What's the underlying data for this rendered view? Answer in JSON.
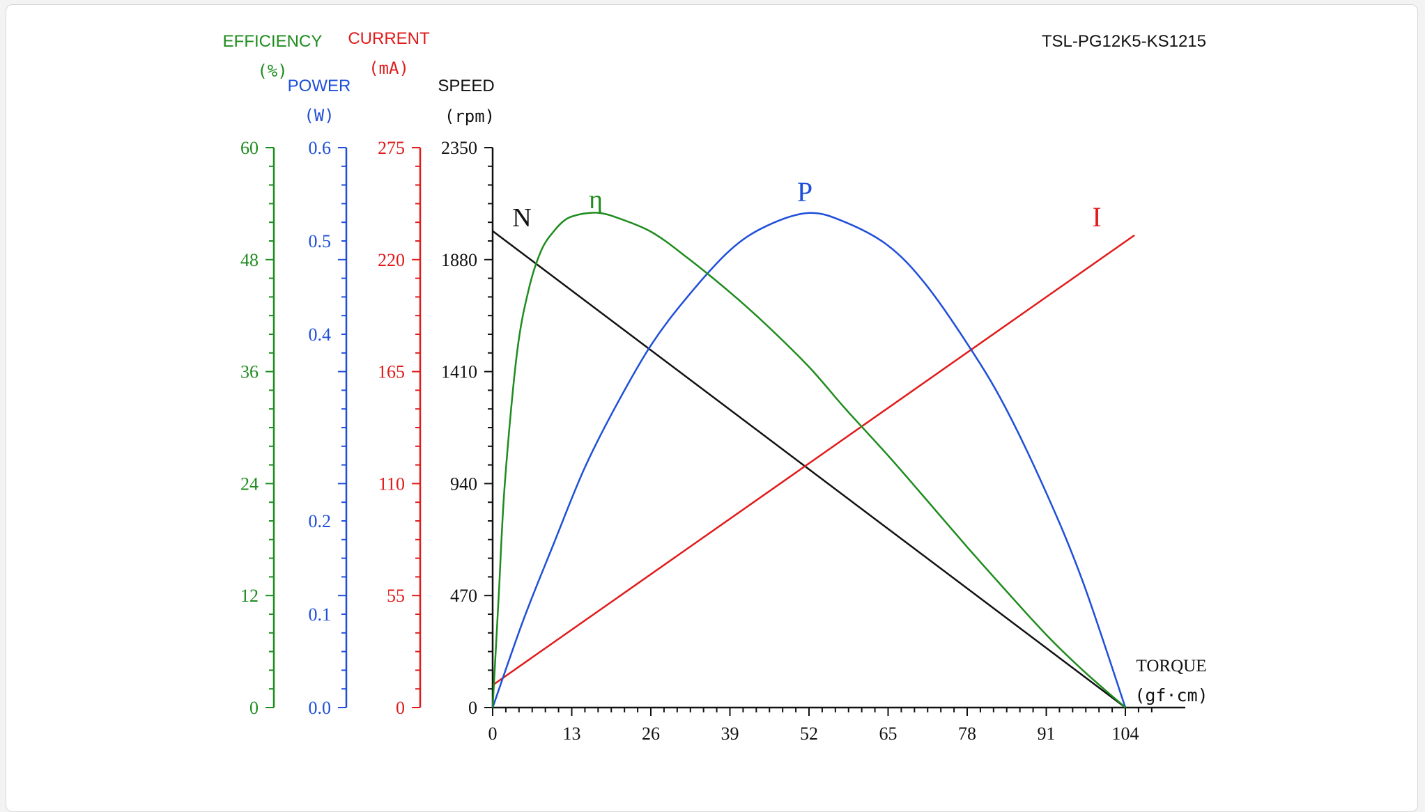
{
  "model": "TSL-PG12K5-KS1215",
  "colors": {
    "efficiency": "#1e8c1e",
    "power": "#1f4fd8",
    "current": "#e01b1b",
    "speed": "#111111"
  },
  "chart_data": {
    "type": "line",
    "title": "TSL-PG12K5-KS1215",
    "x_axis": {
      "label": "TORQUE",
      "unit": "(gf·cm)",
      "range": [
        0,
        110
      ],
      "ticks": [
        0,
        13,
        26,
        39,
        52,
        65,
        78,
        91,
        104
      ]
    },
    "y_axes": [
      {
        "key": "efficiency",
        "label": "EFFICIENCY",
        "unit": "(%)",
        "range": [
          0,
          60
        ],
        "ticks": [
          "0",
          "12",
          "24",
          "36",
          "48",
          "60"
        ]
      },
      {
        "key": "power",
        "label": "POWER",
        "unit": "(W)",
        "range": [
          0,
          0.6
        ],
        "ticks": [
          "0.0",
          "0.1",
          "0.2",
          "0.4",
          "0.5",
          "0.6"
        ],
        "tick_values": [
          0,
          0.1,
          0.2,
          0.4,
          0.5,
          0.6
        ]
      },
      {
        "key": "current",
        "label": "CURRENT",
        "unit": "(mA)",
        "range": [
          0,
          275
        ],
        "ticks": [
          "0",
          "55",
          "110",
          "165",
          "220",
          "275"
        ]
      },
      {
        "key": "speed",
        "label": "SPEED",
        "unit": "(rpm)",
        "range": [
          0,
          2350
        ],
        "ticks": [
          "0",
          "470",
          "940",
          "1410",
          "1880",
          "2350"
        ]
      }
    ],
    "series": [
      {
        "name": "N",
        "axis": "speed",
        "x": [
          0,
          104
        ],
        "y": [
          2000,
          0
        ]
      },
      {
        "name": "I",
        "axis": "current",
        "x": [
          0,
          105.5
        ],
        "y": [
          11,
          232
        ]
      },
      {
        "name": "P",
        "axis": "power",
        "x": [
          0,
          5,
          10,
          15,
          20,
          26,
          32,
          39,
          45,
          52,
          58,
          65,
          71,
          78,
          84,
          91,
          97,
          104
        ],
        "y": [
          0,
          0.093,
          0.175,
          0.255,
          0.32,
          0.388,
          0.44,
          0.49,
          0.516,
          0.53,
          0.52,
          0.495,
          0.455,
          0.39,
          0.325,
          0.23,
          0.135,
          0
        ]
      },
      {
        "name": "η",
        "axis": "efficiency",
        "x": [
          0,
          1,
          2,
          4,
          6,
          8,
          10,
          12,
          14,
          16,
          17.5,
          20,
          26,
          32,
          39,
          45,
          52,
          58,
          65,
          71,
          78,
          84,
          91,
          97,
          104
        ],
        "y": [
          0,
          12,
          24,
          38,
          45,
          49,
          51,
          52.3,
          52.8,
          53,
          53,
          52.6,
          51,
          48.2,
          44.5,
          41,
          36.5,
          32,
          27,
          22.5,
          17.2,
          12.8,
          7.8,
          4,
          0
        ]
      }
    ]
  }
}
